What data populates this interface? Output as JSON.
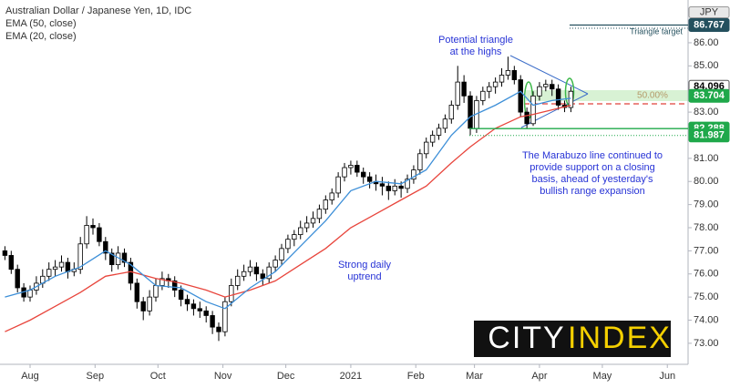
{
  "chart_data": {
    "type": "candlestick",
    "title": "Australian Dollar / Japanese Yen, 1D, IDC",
    "currency": "JPY",
    "x": [
      -12,
      -9,
      -6,
      -3,
      0,
      3,
      6,
      9,
      12,
      15,
      18,
      21,
      24,
      27,
      30,
      33,
      36,
      39,
      42,
      45,
      48,
      51,
      54,
      57,
      60,
      63,
      66,
      69,
      72,
      75,
      78,
      81,
      84,
      87,
      90,
      93,
      96,
      99,
      102,
      105,
      108,
      111,
      114,
      117,
      120,
      123,
      126,
      129,
      132,
      135,
      138,
      141,
      144,
      147,
      150,
      153,
      156,
      159,
      162,
      165,
      168,
      171,
      174,
      177,
      180,
      183,
      186,
      189,
      192,
      195,
      198,
      201,
      204,
      207,
      210,
      213,
      216,
      219,
      222,
      225,
      228,
      231,
      234,
      237,
      240,
      243,
      246,
      249,
      252,
      255,
      258
    ],
    "open": [
      77.0,
      76.8,
      76.2,
      75.4,
      75.0,
      75.3,
      75.6,
      75.9,
      76.2,
      76.3,
      76.5,
      76.1,
      76.2,
      77.3,
      78.1,
      78.0,
      77.4,
      76.9,
      76.4,
      76.9,
      76.5,
      75.6,
      74.8,
      74.4,
      75.0,
      75.5,
      75.8,
      75.7,
      75.3,
      74.9,
      74.7,
      74.5,
      74.4,
      74.2,
      73.7,
      73.5,
      74.8,
      75.5,
      75.9,
      76.1,
      76.3,
      76.0,
      75.8,
      76.3,
      76.6,
      77.1,
      77.5,
      77.7,
      78.0,
      78.2,
      78.4,
      78.8,
      79.2,
      79.5,
      80.2,
      80.6,
      80.7,
      80.4,
      80.2,
      80.0,
      79.9,
      79.8,
      79.6,
      79.8,
      79.7,
      80.1,
      80.5,
      81.2,
      81.7,
      82.0,
      82.3,
      82.7,
      83.3,
      84.3,
      83.7,
      82.3,
      83.5,
      83.9,
      84.1,
      84.3,
      84.6,
      84.8,
      84.4,
      83.0,
      82.5,
      83.7,
      84.1,
      84.2,
      84.0,
      83.3,
      83.2
    ],
    "high": [
      77.2,
      77.0,
      76.4,
      75.6,
      75.5,
      75.9,
      76.2,
      76.5,
      76.6,
      76.8,
      76.7,
      76.5,
      77.6,
      78.5,
      78.4,
      78.2,
      77.6,
      77.1,
      77.2,
      77.1,
      76.7,
      75.8,
      75.0,
      75.3,
      75.8,
      76.1,
      76.0,
      75.9,
      75.5,
      75.1,
      74.9,
      74.8,
      74.6,
      74.4,
      73.9,
      75.0,
      75.8,
      76.2,
      76.4,
      76.6,
      76.5,
      76.2,
      76.5,
      76.8,
      77.3,
      77.7,
      77.9,
      78.3,
      78.5,
      78.7,
      79.0,
      79.4,
      79.7,
      80.4,
      80.8,
      80.9,
      80.9,
      80.6,
      80.4,
      80.3,
      80.2,
      80.0,
      80.1,
      80.0,
      80.3,
      80.7,
      81.4,
      81.9,
      82.2,
      82.5,
      82.9,
      83.5,
      85.0,
      84.6,
      83.9,
      83.7,
      84.1,
      84.3,
      84.5,
      84.9,
      85.4,
      85.0,
      84.6,
      83.2,
      83.9,
      84.3,
      84.4,
      84.4,
      84.2,
      83.5,
      84.1
    ],
    "low": [
      76.6,
      76.0,
      75.2,
      74.8,
      74.8,
      75.1,
      75.4,
      75.7,
      75.9,
      76.1,
      75.8,
      75.9,
      76.0,
      77.1,
      77.7,
      77.2,
      76.6,
      76.1,
      76.2,
      76.3,
      75.3,
      74.5,
      74.0,
      74.2,
      74.8,
      75.3,
      75.4,
      75.0,
      74.6,
      74.4,
      74.2,
      74.1,
      73.9,
      73.4,
      73.1,
      73.3,
      74.6,
      75.3,
      75.7,
      75.9,
      75.7,
      75.5,
      75.6,
      76.1,
      76.4,
      76.9,
      77.2,
      77.5,
      77.8,
      78.0,
      78.2,
      78.6,
      79.0,
      79.3,
      80.0,
      80.3,
      80.2,
      79.9,
      79.7,
      79.6,
      79.4,
      79.2,
      79.4,
      79.3,
      79.5,
      79.9,
      80.3,
      81.0,
      81.5,
      81.8,
      82.1,
      82.5,
      83.1,
      83.4,
      82.0,
      82.1,
      83.3,
      83.6,
      83.8,
      84.1,
      84.4,
      84.2,
      82.8,
      82.3,
      82.4,
      83.5,
      83.9,
      83.7,
      83.1,
      83.0,
      83.0
    ],
    "close": [
      76.8,
      76.2,
      75.4,
      75.0,
      75.3,
      75.6,
      75.9,
      76.2,
      76.3,
      76.5,
      76.1,
      76.2,
      77.3,
      78.1,
      78.0,
      77.4,
      76.9,
      76.4,
      76.9,
      76.5,
      75.6,
      74.8,
      74.4,
      75.0,
      75.5,
      75.8,
      75.7,
      75.3,
      74.9,
      74.7,
      74.5,
      74.4,
      74.2,
      73.7,
      73.5,
      74.8,
      75.5,
      75.9,
      76.1,
      76.3,
      76.0,
      75.8,
      76.3,
      76.6,
      77.1,
      77.5,
      77.7,
      78.0,
      78.2,
      78.4,
      78.8,
      79.2,
      79.5,
      80.2,
      80.6,
      80.7,
      80.4,
      80.2,
      80.0,
      79.9,
      79.8,
      79.6,
      79.8,
      79.7,
      80.1,
      80.5,
      81.2,
      81.7,
      82.0,
      82.3,
      82.7,
      83.3,
      84.3,
      83.7,
      82.3,
      83.5,
      83.9,
      84.1,
      84.3,
      84.6,
      84.8,
      84.4,
      83.0,
      82.5,
      83.7,
      84.1,
      84.2,
      84.0,
      83.3,
      83.2,
      83.9
    ],
    "up_color": "#ffffff",
    "down_color": "#000000",
    "series": [
      {
        "name": "EMA (50, close)",
        "color": "#e8453c",
        "x": [
          -12,
          0,
          12,
          24,
          36,
          48,
          60,
          72,
          84,
          93,
          105,
          117,
          129,
          141,
          153,
          165,
          177,
          189,
          201,
          210,
          222,
          234,
          240,
          249,
          258
        ],
        "values": [
          73.5,
          74.0,
          74.6,
          75.2,
          75.9,
          76.1,
          75.8,
          75.6,
          75.3,
          75.0,
          75.3,
          75.7,
          76.4,
          77.1,
          78.0,
          78.6,
          79.2,
          79.8,
          80.8,
          81.5,
          82.3,
          82.8,
          82.9,
          83.1,
          83.3
        ]
      },
      {
        "name": "EMA (20, close)",
        "color": "#3d8fd8",
        "x": [
          -12,
          0,
          12,
          24,
          36,
          48,
          60,
          72,
          84,
          93,
          105,
          117,
          129,
          141,
          153,
          165,
          177,
          189,
          201,
          210,
          222,
          234,
          240,
          249,
          258
        ],
        "values": [
          75.0,
          75.3,
          75.9,
          76.3,
          77.0,
          76.4,
          75.5,
          75.4,
          74.8,
          74.5,
          75.4,
          76.1,
          77.2,
          78.3,
          79.6,
          80.0,
          79.9,
          80.5,
          82.0,
          82.8,
          83.3,
          83.9,
          83.3,
          83.5,
          83.6
        ]
      }
    ],
    "xlim": [
      -14.35,
      313.9
    ],
    "ylim": [
      72.09,
      87.85
    ],
    "xticks": [
      {
        "value": 0,
        "label": "Aug"
      },
      {
        "value": 31,
        "label": "Sep"
      },
      {
        "value": 61,
        "label": "Oct"
      },
      {
        "value": 92,
        "label": "Nov"
      },
      {
        "value": 122,
        "label": "Dec"
      },
      {
        "value": 153,
        "label": "2021"
      },
      {
        "value": 184,
        "label": "Feb"
      },
      {
        "value": 212,
        "label": "Mar"
      },
      {
        "value": 243,
        "label": "Apr"
      },
      {
        "value": 273,
        "label": "May"
      },
      {
        "value": 304,
        "label": "Jun"
      }
    ],
    "yticks": [
      {
        "value": 73,
        "label": "73.00"
      },
      {
        "value": 74,
        "label": "74.00"
      },
      {
        "value": 75,
        "label": "75.00"
      },
      {
        "value": 76,
        "label": "76.00"
      },
      {
        "value": 77,
        "label": "77.00"
      },
      {
        "value": 78,
        "label": "78.00"
      },
      {
        "value": 79,
        "label": "79.00"
      },
      {
        "value": 80,
        "label": "80.00"
      },
      {
        "value": 81,
        "label": "81.00"
      },
      {
        "value": 82,
        "label": "82.00"
      },
      {
        "value": 83,
        "label": "83.00"
      },
      {
        "value": 84,
        "label": "84.00"
      },
      {
        "value": 85,
        "label": "85.00"
      },
      {
        "value": 86,
        "label": "86.00"
      }
    ],
    "price_labels": [
      {
        "value": 86.767,
        "color": "#24505e"
      },
      {
        "value": 84.096,
        "color": "#ffffff"
      },
      {
        "value": 83.704,
        "color": "#1fa84a"
      },
      {
        "value": 82.288,
        "color": "#1fa84a"
      },
      {
        "value": 81.987,
        "color": "#1fa84a"
      }
    ],
    "annotations": {
      "triangle": [
        "Potential triangle",
        "at the highs"
      ],
      "target": "Triangle target",
      "fib": "50.00%",
      "marabuzo": [
        "The Marabuzo line continued to",
        "provide support on a closing",
        "basis, ahead of yesterday's",
        "bullish range expansion"
      ],
      "uptrend": [
        "Strong daily",
        "uptrend"
      ]
    },
    "logo": {
      "left": "CITY",
      "right": "INDEX"
    }
  }
}
